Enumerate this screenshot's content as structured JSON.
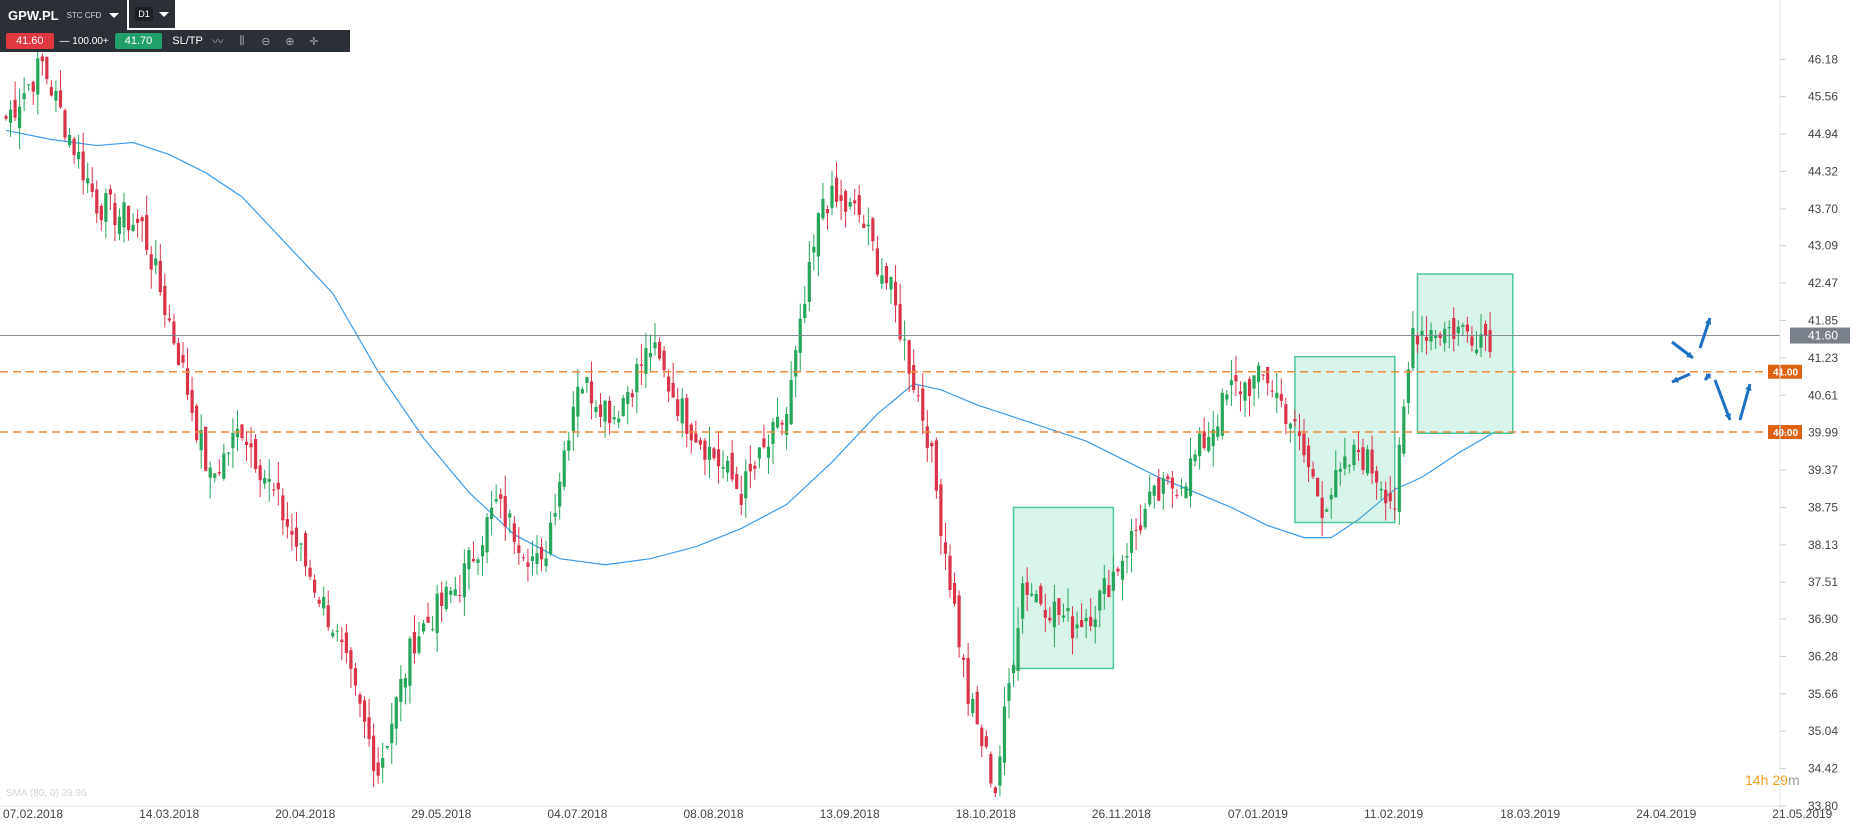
{
  "toolbar": {
    "symbol": "GPW.PL",
    "symbol_type": "STC CFD",
    "timeframe": "D1",
    "sell_price": "41.60",
    "volume": "— 100.00+",
    "buy_price": "41.70",
    "sltp_label": "SL/TP"
  },
  "indicator_label": "SMA (80, 0) 39.96",
  "countdown": {
    "hours": "14",
    "h": "h",
    "minutes": "29",
    "m": "m"
  },
  "colors": {
    "bull": "#26a65b",
    "bear": "#d9334a",
    "sma": "#3d9be9",
    "support": "#f08a3c",
    "box": "#4cc79a",
    "arrow": "#1e6fc0"
  },
  "chart_data": {
    "type": "candlestick",
    "ylim": [
      33.8,
      46.5
    ],
    "y_ticks": [
      "46.18",
      "45.56",
      "44.94",
      "44.32",
      "43.70",
      "43.09",
      "42.47",
      "41.85",
      "41.23",
      "40.61",
      "39.99",
      "39.37",
      "38.75",
      "38.13",
      "37.51",
      "36.90",
      "36.28",
      "35.66",
      "35.04",
      "34.42",
      "33.80"
    ],
    "x_ticks": [
      "07.02.2018",
      "14.03.2018",
      "20.04.2018",
      "29.05.2018",
      "04.07.2018",
      "08.08.2018",
      "13.09.2018",
      "18.10.2018",
      "26.11.2018",
      "07.01.2019",
      "11.02.2019",
      "18.03.2019",
      "24.04.2019",
      "21.05.2019"
    ],
    "candle_count": 276,
    "anchors": [
      [
        0,
        45.2
      ],
      [
        8,
        46.1
      ],
      [
        12,
        45.3
      ],
      [
        20,
        43.8
      ],
      [
        30,
        43.4
      ],
      [
        38,
        41.3
      ],
      [
        45,
        39.2
      ],
      [
        52,
        40.1
      ],
      [
        60,
        38.8
      ],
      [
        72,
        36.8
      ],
      [
        82,
        34.4
      ],
      [
        90,
        36.6
      ],
      [
        100,
        37.5
      ],
      [
        108,
        38.8
      ],
      [
        118,
        37.7
      ],
      [
        126,
        40.9
      ],
      [
        134,
        40.3
      ],
      [
        142,
        41.4
      ],
      [
        150,
        40.2
      ],
      [
        162,
        39.0
      ],
      [
        172,
        40.3
      ],
      [
        180,
        43.9
      ],
      [
        188,
        43.6
      ],
      [
        195,
        42.3
      ],
      [
        203,
        40.0
      ],
      [
        212,
        35.6
      ],
      [
        218,
        34.1
      ],
      [
        224,
        37.5
      ],
      [
        235,
        36.8
      ],
      [
        240,
        37.1
      ],
      [
        252,
        38.8
      ],
      [
        260,
        39.3
      ],
      [
        270,
        40.7
      ],
      [
        278,
        40.9
      ],
      [
        283,
        40.2
      ],
      [
        290,
        38.8
      ],
      [
        298,
        39.7
      ],
      [
        303,
        39.2
      ],
      [
        306,
        38.8
      ],
      [
        310,
        41.7
      ],
      [
        320,
        41.7
      ],
      [
        327,
        41.6
      ]
    ],
    "last_price": "41.60",
    "support_levels": [
      {
        "value": 41.0,
        "label": "41.00"
      },
      {
        "value": 40.0,
        "label": "40.00"
      }
    ],
    "consolidation_boxes": [
      [
        222,
        244,
        38.75,
        36.08
      ],
      [
        284,
        306,
        41.25,
        38.5
      ],
      [
        311,
        332,
        42.62,
        39.98
      ]
    ],
    "sma_period": 80,
    "sma_curve": [
      [
        0,
        45.0
      ],
      [
        10,
        44.85
      ],
      [
        20,
        44.75
      ],
      [
        28,
        44.8
      ],
      [
        36,
        44.6
      ],
      [
        44,
        44.3
      ],
      [
        52,
        43.9
      ],
      [
        62,
        43.1
      ],
      [
        72,
        42.3
      ],
      [
        82,
        41.0
      ],
      [
        92,
        39.9
      ],
      [
        102,
        39.0
      ],
      [
        112,
        38.3
      ],
      [
        122,
        37.9
      ],
      [
        132,
        37.8
      ],
      [
        142,
        37.9
      ],
      [
        152,
        38.1
      ],
      [
        162,
        38.4
      ],
      [
        172,
        38.8
      ],
      [
        182,
        39.5
      ],
      [
        192,
        40.3
      ],
      [
        200,
        40.8
      ],
      [
        206,
        40.7
      ],
      [
        214,
        40.45
      ],
      [
        222,
        40.25
      ],
      [
        230,
        40.05
      ],
      [
        238,
        39.85
      ],
      [
        246,
        39.55
      ],
      [
        254,
        39.25
      ],
      [
        262,
        39.0
      ],
      [
        270,
        38.75
      ],
      [
        278,
        38.45
      ],
      [
        286,
        38.25
      ],
      [
        292,
        38.25
      ],
      [
        298,
        38.55
      ],
      [
        306,
        39.05
      ],
      [
        312,
        39.25
      ],
      [
        320,
        39.65
      ],
      [
        328,
        40.0
      ]
    ]
  }
}
